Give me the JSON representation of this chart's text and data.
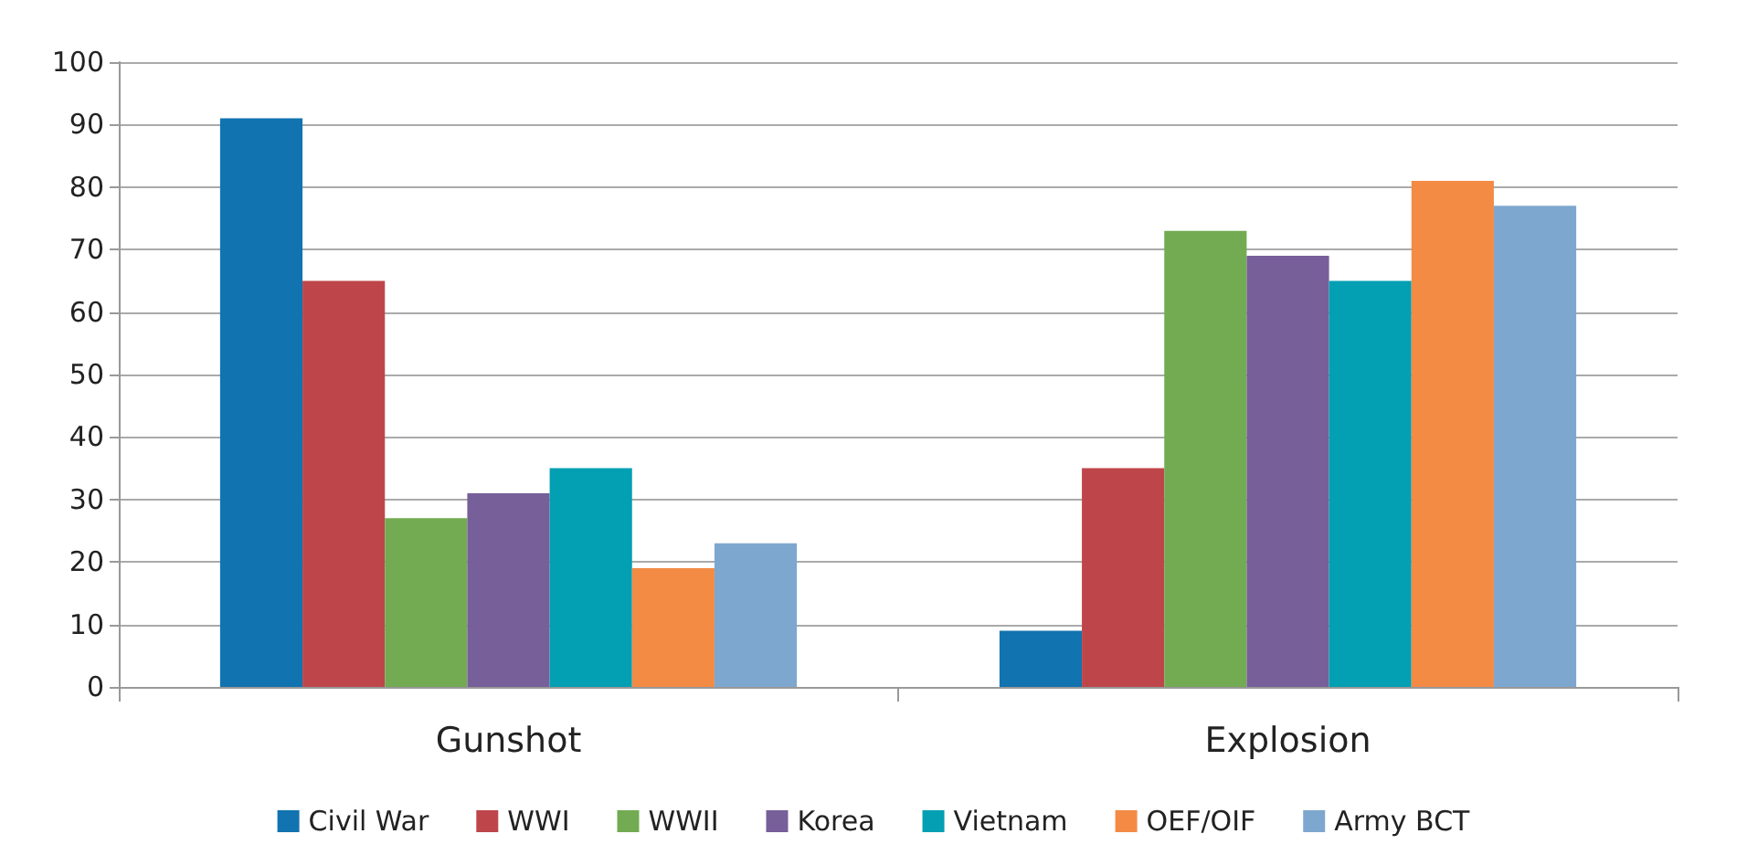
{
  "chart_data": {
    "type": "bar",
    "categories": [
      "Gunshot",
      "Explosion"
    ],
    "series": [
      {
        "name": "Civil War",
        "color": "#1173b0",
        "values": [
          91,
          9
        ]
      },
      {
        "name": "WWI",
        "color": "#be464b",
        "values": [
          65,
          35
        ]
      },
      {
        "name": "WWII",
        "color": "#72ab52",
        "values": [
          27,
          73
        ]
      },
      {
        "name": "Korea",
        "color": "#775f99",
        "values": [
          31,
          69
        ]
      },
      {
        "name": "Vietnam",
        "color": "#039fb3",
        "values": [
          35,
          65
        ]
      },
      {
        "name": "OEF/OIF",
        "color": "#f38b45",
        "values": [
          19,
          81
        ]
      },
      {
        "name": "Army BCT",
        "color": "#7ea7cf",
        "values": [
          23,
          77
        ]
      }
    ],
    "ylim": [
      0,
      100
    ],
    "yticks": [
      0,
      10,
      20,
      30,
      40,
      50,
      60,
      70,
      80,
      90,
      100
    ],
    "grid": "y",
    "legend": "bottom"
  }
}
